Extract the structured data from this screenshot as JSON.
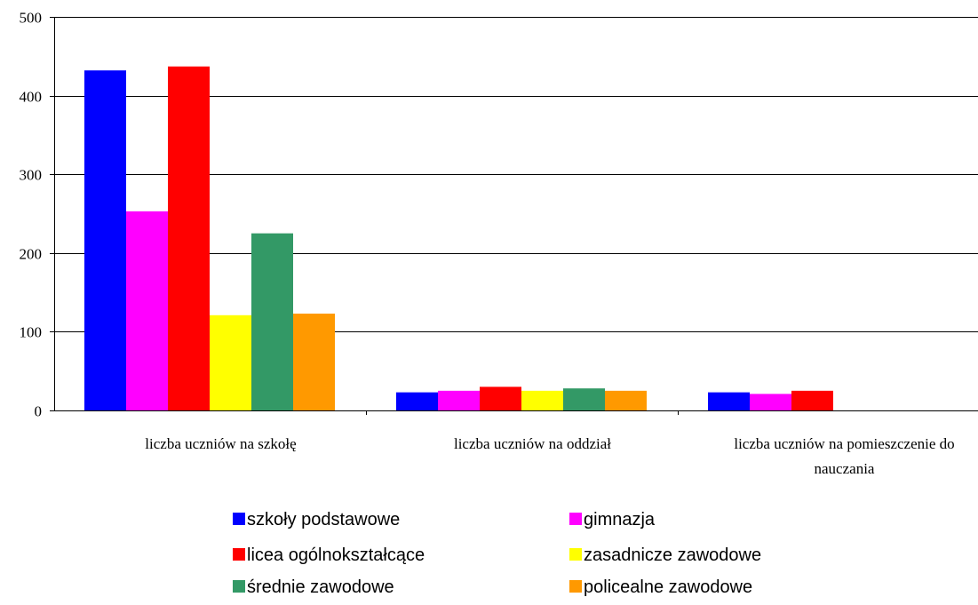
{
  "chart_data": {
    "type": "bar",
    "title": "",
    "xlabel": "",
    "ylabel": "",
    "ylim": [
      0,
      500
    ],
    "yticks": [
      0,
      100,
      200,
      300,
      400,
      500
    ],
    "grid": true,
    "legend_position": "bottom",
    "categories": [
      [
        "liczba uczniów na szkołę"
      ],
      [
        "liczba uczniów na oddział"
      ],
      [
        "liczba uczniów na pomieszczenie do",
        "nauczania"
      ]
    ],
    "series": [
      {
        "name": "szkoły podstawowe",
        "color": "#0000ff",
        "values": [
          432,
          23,
          23
        ]
      },
      {
        "name": "gimnazja",
        "color": "#ff00ff",
        "values": [
          253,
          25,
          21
        ]
      },
      {
        "name": "licea ogólnokształcące",
        "color": "#ff0000",
        "values": [
          437,
          30,
          25
        ]
      },
      {
        "name": "zasadnicze zawodowe",
        "color": "#ffff00",
        "values": [
          121,
          25,
          null
        ]
      },
      {
        "name": "średnie zawodowe",
        "color": "#339966",
        "values": [
          225,
          28,
          null
        ]
      },
      {
        "name": "policealne zawodowe",
        "color": "#ff9900",
        "values": [
          123,
          25,
          null
        ]
      }
    ]
  }
}
